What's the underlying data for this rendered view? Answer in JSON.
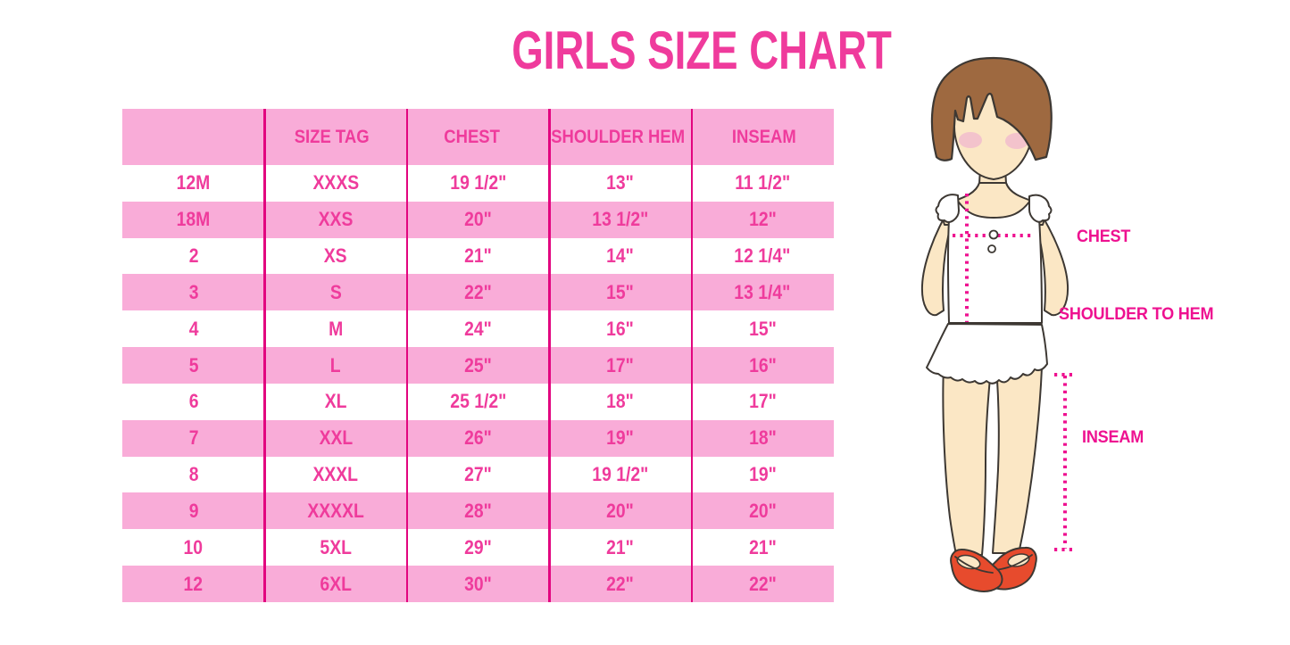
{
  "title": "GIRLS SIZE CHART",
  "table": {
    "headers": [
      "",
      "SIZE TAG",
      "CHEST",
      "SHOULDER HEM",
      "INSEAM"
    ],
    "rows": [
      [
        "12M",
        "XXXS",
        "19 1/2\"",
        "13\"",
        "11 1/2\""
      ],
      [
        "18M",
        "XXS",
        "20\"",
        "13 1/2\"",
        "12\""
      ],
      [
        "2",
        "XS",
        "21\"",
        "14\"",
        "12 1/4\""
      ],
      [
        "3",
        "S",
        "22\"",
        "15\"",
        "13 1/4\""
      ],
      [
        "4",
        "M",
        "24\"",
        "16\"",
        "15\""
      ],
      [
        "5",
        "L",
        "25\"",
        "17\"",
        "16\""
      ],
      [
        "6",
        "XL",
        "25 1/2\"",
        "18\"",
        "17\""
      ],
      [
        "7",
        "XXL",
        "26\"",
        "19\"",
        "18\""
      ],
      [
        "8",
        "XXXL",
        "27\"",
        "19 1/2\"",
        "19\""
      ],
      [
        "9",
        "XXXXL",
        "28\"",
        "20\"",
        "20\""
      ],
      [
        "10",
        "5XL",
        "29\"",
        "21\"",
        "21\""
      ],
      [
        "12",
        "6XL",
        "30\"",
        "22\"",
        "22\""
      ]
    ]
  },
  "figure": {
    "chest_label": "CHEST",
    "shoulder_label": "SHOULDER TO HEM",
    "inseam_label": "INSEAM"
  },
  "colors": {
    "pink-band": "#F9ACD8",
    "magenta": "#EF3B9C",
    "sep-line": "#E2057F",
    "label-magenta": "#EE1190",
    "hair": "#9E6940",
    "skin": "#FBE7C5",
    "blush": "#F3C3CC",
    "outline": "#3D3833",
    "shoe-red": "#E74B2D",
    "dress": "#FFFFFF"
  }
}
